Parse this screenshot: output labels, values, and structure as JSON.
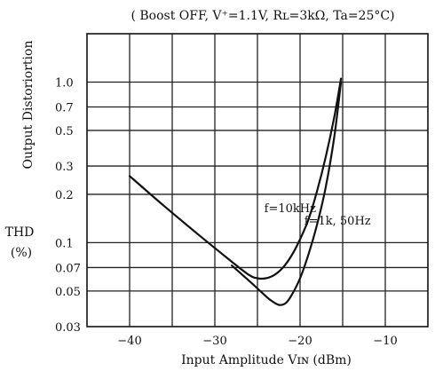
{
  "chart_data": {
    "type": "line",
    "title": "( Boost OFF, V⁺=1.1V, Rʟ=3kΩ, Ta=25°C)",
    "xlabel": "Input Amplitude   Vɪɴ (dBm)",
    "ylabel_lines": [
      "Output  Distoriortion",
      "THD",
      "(%)"
    ],
    "x_scale": "linear",
    "y_scale": "log",
    "xlim": [
      -45,
      -5
    ],
    "ylim": [
      0.03,
      2.0
    ],
    "x_ticks": [
      -40,
      -30,
      -20,
      -10
    ],
    "x_tick_labels": [
      "−40",
      "−30",
      "−20",
      "−10"
    ],
    "y_ticks": [
      1.0,
      0.7,
      0.5,
      0.3,
      0.2,
      0.1,
      0.07,
      0.05,
      0.03
    ],
    "y_tick_labels": [
      "1.0",
      "0.7",
      "0.5",
      "0.3",
      "0.2",
      "0.1",
      "0.07",
      "0.05",
      "0.03"
    ],
    "grid": true,
    "series": [
      {
        "name": "f=10kHz",
        "x": [
          -40,
          -36,
          -32,
          -28,
          -26,
          -25,
          -24,
          -23,
          -22,
          -21,
          -20,
          -19,
          -18,
          -17,
          -16,
          -15.2
        ],
        "y": [
          0.26,
          0.17,
          0.113,
          0.076,
          0.063,
          0.06,
          0.06,
          0.063,
          0.07,
          0.083,
          0.105,
          0.14,
          0.21,
          0.34,
          0.6,
          1.05
        ]
      },
      {
        "name": "f=1k, 50Hz",
        "x": [
          -28,
          -26,
          -24.5,
          -23.5,
          -22.5,
          -21.7,
          -21,
          -20,
          -19,
          -18,
          -17,
          -16,
          -15.2
        ],
        "y": [
          0.072,
          0.058,
          0.049,
          0.044,
          0.041,
          0.042,
          0.047,
          0.06,
          0.085,
          0.13,
          0.22,
          0.45,
          1.0
        ]
      }
    ]
  }
}
